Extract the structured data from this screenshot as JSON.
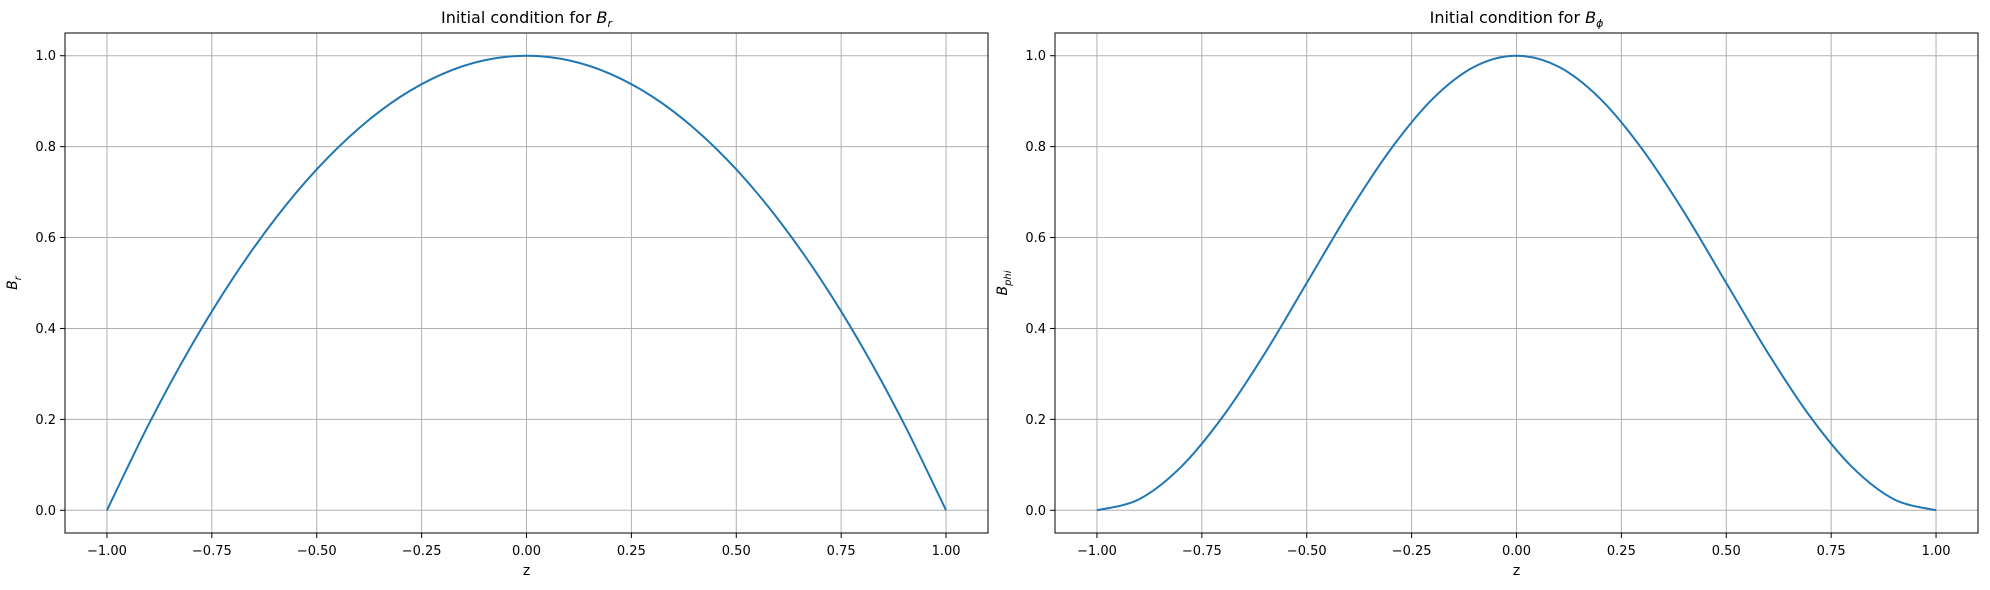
{
  "chart_data": [
    {
      "type": "line",
      "title": {
        "text": "Initial condition for ",
        "base": "B",
        "sub": "r"
      },
      "xlabel": "z",
      "ylabel": {
        "base": "B",
        "sub": "r"
      },
      "xlim": [
        -1.1,
        1.1
      ],
      "ylim": [
        -0.05,
        1.05
      ],
      "xticks": [
        -1.0,
        -0.75,
        -0.5,
        -0.25,
        0.0,
        0.25,
        0.5,
        0.75,
        1.0
      ],
      "xtick_labels": [
        "−1.00",
        "−0.75",
        "−0.50",
        "−0.25",
        "0.00",
        "0.25",
        "0.50",
        "0.75",
        "1.00"
      ],
      "yticks": [
        0.0,
        0.2,
        0.4,
        0.6,
        0.8,
        1.0
      ],
      "ytick_labels": [
        "0.0",
        "0.2",
        "0.4",
        "0.6",
        "0.8",
        "1.0"
      ],
      "grid": true,
      "series": [
        {
          "color": "#1f77b4",
          "x": [
            -1.0,
            -0.9,
            -0.8,
            -0.7,
            -0.6,
            -0.5,
            -0.4,
            -0.3,
            -0.2,
            -0.1,
            0.0,
            0.1,
            0.2,
            0.3,
            0.4,
            0.5,
            0.6,
            0.7,
            0.8,
            0.9,
            1.0
          ],
          "y": [
            0.0,
            0.19,
            0.36,
            0.51,
            0.64,
            0.75,
            0.84,
            0.91,
            0.96,
            0.99,
            1.0,
            0.99,
            0.96,
            0.91,
            0.84,
            0.75,
            0.64,
            0.51,
            0.36,
            0.19,
            0.0
          ]
        }
      ]
    },
    {
      "type": "line",
      "title": {
        "text": "Initial condition for ",
        "base": "B",
        "sub": "ϕ"
      },
      "xlabel": "z",
      "ylabel": {
        "base": "B",
        "sub": "phi"
      },
      "xlim": [
        -1.1,
        1.1
      ],
      "ylim": [
        -0.05,
        1.05
      ],
      "xticks": [
        -1.0,
        -0.75,
        -0.5,
        -0.25,
        0.0,
        0.25,
        0.5,
        0.75,
        1.0
      ],
      "xtick_labels": [
        "−1.00",
        "−0.75",
        "−0.50",
        "−0.25",
        "0.00",
        "0.25",
        "0.50",
        "0.75",
        "1.00"
      ],
      "yticks": [
        0.0,
        0.2,
        0.4,
        0.6,
        0.8,
        1.0
      ],
      "ytick_labels": [
        "0.0",
        "0.2",
        "0.4",
        "0.6",
        "0.8",
        "1.0"
      ],
      "grid": true,
      "series": [
        {
          "color": "#1f77b4",
          "x": [
            -1.0,
            -0.9,
            -0.8,
            -0.7,
            -0.6,
            -0.5,
            -0.4,
            -0.3,
            -0.2,
            -0.1,
            0.0,
            0.1,
            0.2,
            0.3,
            0.4,
            0.5,
            0.6,
            0.7,
            0.8,
            0.9,
            1.0
          ],
          "y": [
            0.0,
            0.024,
            0.095,
            0.206,
            0.345,
            0.5,
            0.655,
            0.794,
            0.905,
            0.976,
            1.0,
            0.976,
            0.905,
            0.794,
            0.655,
            0.5,
            0.345,
            0.206,
            0.095,
            0.024,
            0.0
          ]
        }
      ]
    }
  ]
}
